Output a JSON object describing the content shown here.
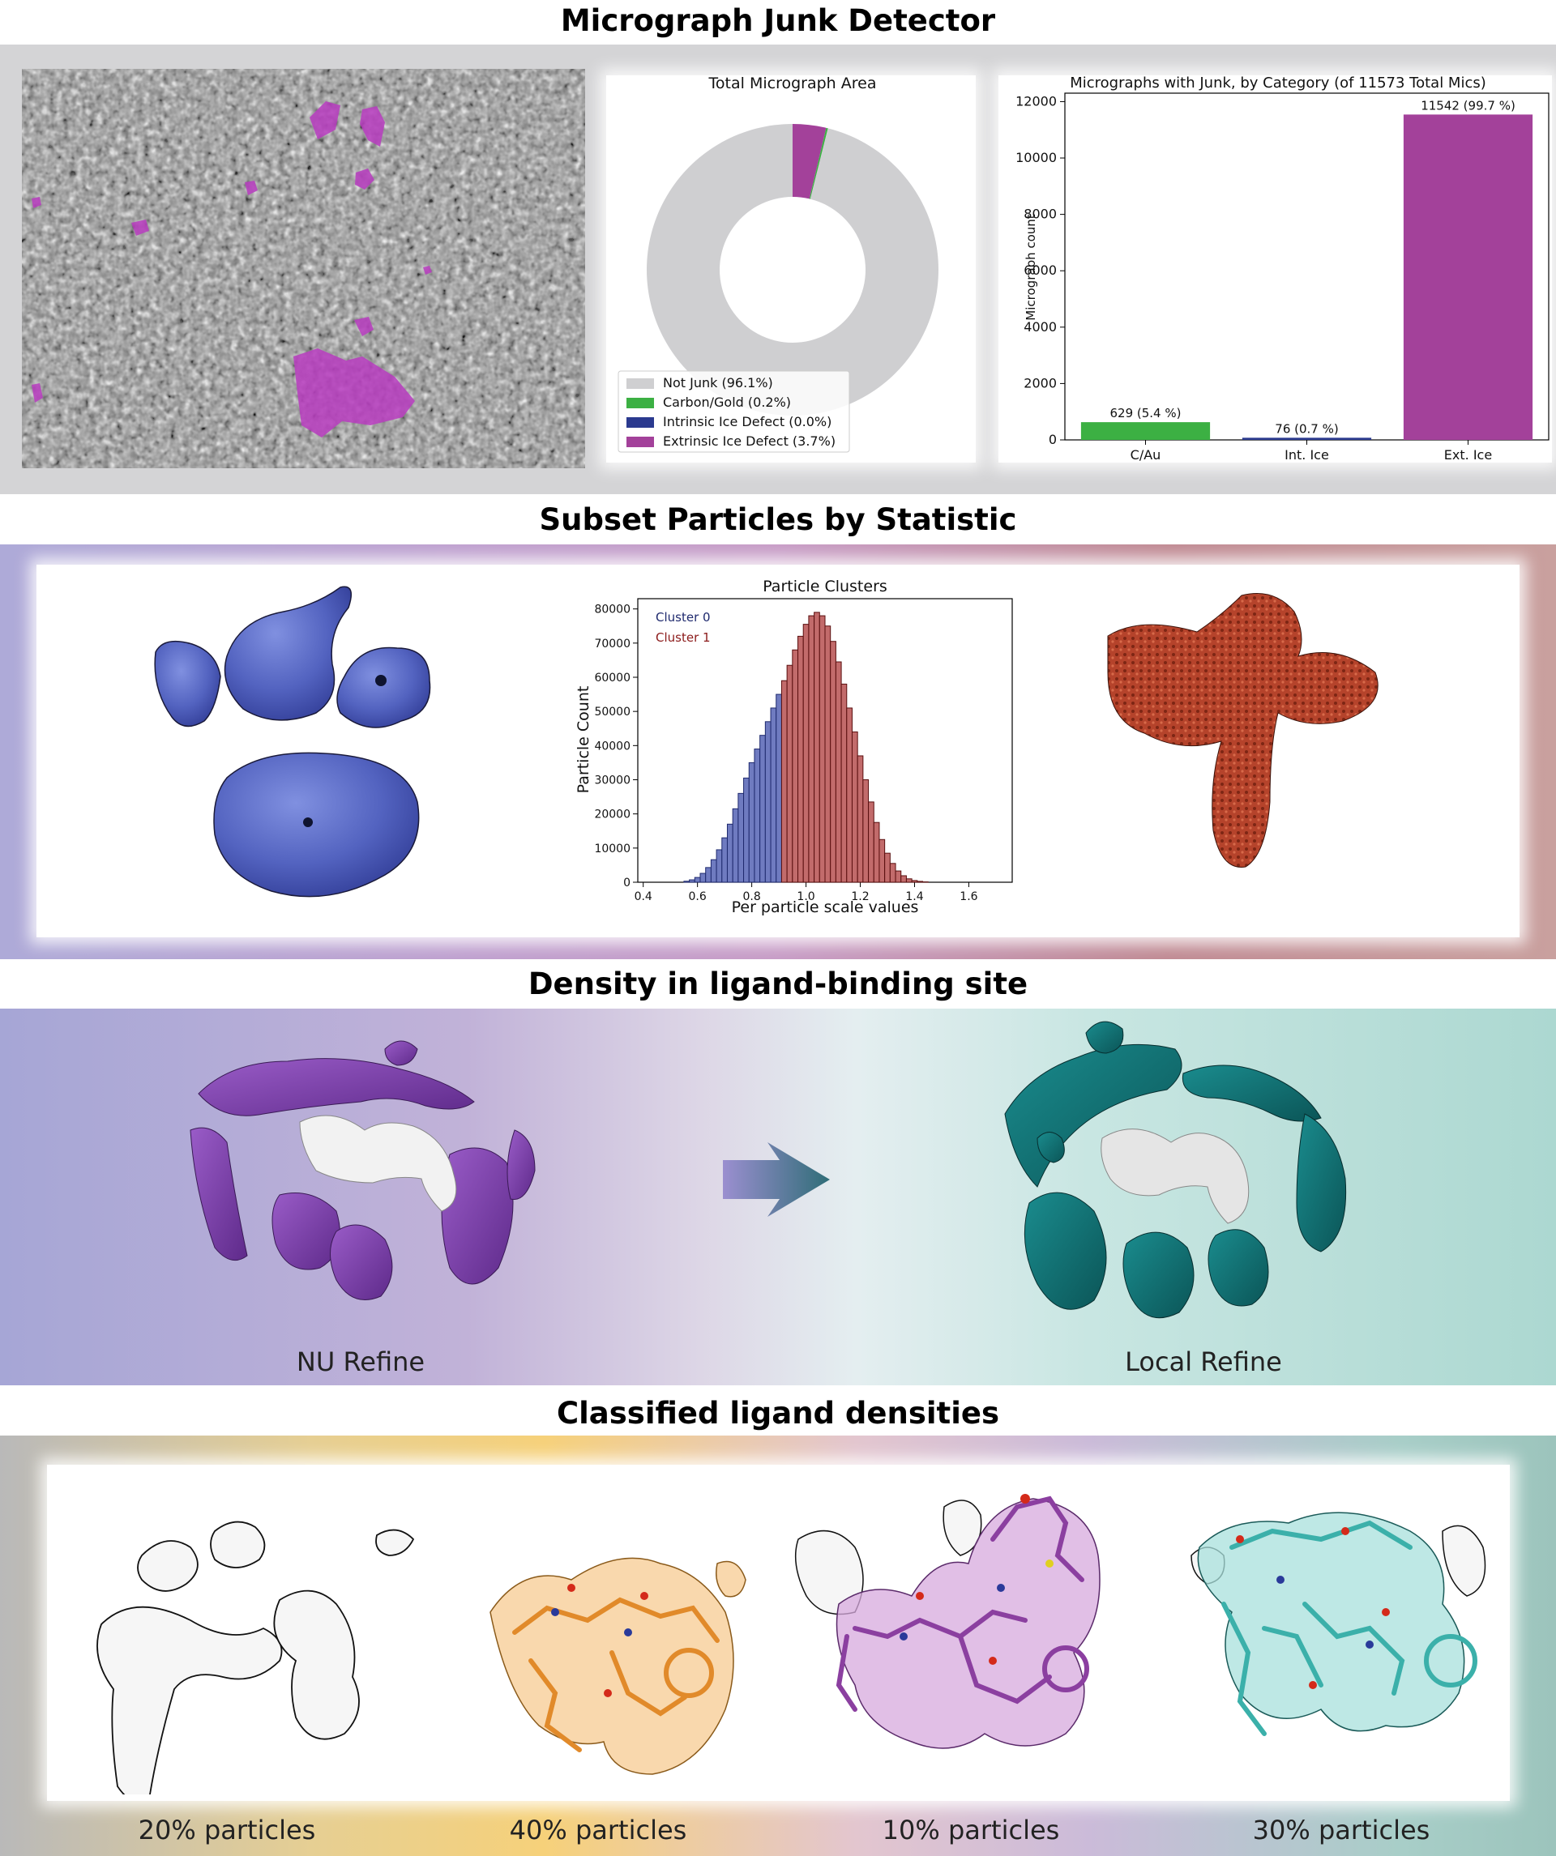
{
  "sections": {
    "junk": {
      "title": "Micrograph Junk Detector"
    },
    "subset": {
      "title": "Subset Particles by Statistic"
    },
    "density": {
      "title": "Density in ligand-binding site",
      "left_label": "NU Refine",
      "right_label": "Local Refine"
    },
    "classified": {
      "title": "Classified ligand densities",
      "labels": [
        "20% particles",
        "40% particles",
        "10% particles",
        "30% particles"
      ]
    }
  },
  "colors": {
    "not_junk": "#cfcfd1",
    "carbon_gold": "#3cb043",
    "intrinsic": "#2b3a8f",
    "extrinsic": "#a3419a",
    "cluster0": "#1f2a6e",
    "cluster1": "#8b1a1a",
    "blue_map": "#5b6cc4",
    "red_map": "#b5432b",
    "purple_map": "#7b3fa6",
    "teal_map": "#12777a"
  },
  "chart_data": [
    {
      "type": "pie",
      "title": "Total Micrograph Area",
      "donut": true,
      "slices": [
        {
          "label": "Not Junk (96.1%)",
          "value": 96.1,
          "color": "#cfcfd1"
        },
        {
          "label": "Carbon/Gold (0.2%)",
          "value": 0.2,
          "color": "#3cb043"
        },
        {
          "label": "Intrinsic Ice Defect (0.0%)",
          "value": 0.0,
          "color": "#2b3a8f"
        },
        {
          "label": "Extrinsic Ice Defect (3.7%)",
          "value": 3.7,
          "color": "#a3419a"
        }
      ],
      "legend": "bottom-left"
    },
    {
      "type": "bar",
      "title": "Micrographs with Junk, by Category (of 11573 Total Mics)",
      "categories": [
        "C/Au",
        "Int. Ice",
        "Ext. Ice"
      ],
      "values": [
        629,
        76,
        11542
      ],
      "data_labels": [
        "629 (5.4 %)",
        "76 (0.7 %)",
        "11542 (99.7 %)"
      ],
      "colors": [
        "#3cb043",
        "#2b3a8f",
        "#a3419a"
      ],
      "ylabel": "Micrograph count",
      "ylim": [
        0,
        12300
      ],
      "yticks": [
        0,
        2000,
        4000,
        6000,
        8000,
        10000,
        12000
      ]
    },
    {
      "type": "bar",
      "title": "Particle Clusters",
      "xlabel": "Per particle scale values",
      "ylabel": "Particle Count",
      "xlim": [
        0.38,
        1.76
      ],
      "ylim": [
        0,
        83000
      ],
      "xticks": [
        0.4,
        0.6,
        0.8,
        1.0,
        1.2,
        1.4,
        1.6
      ],
      "yticks": [
        0,
        10000,
        20000,
        30000,
        40000,
        50000,
        60000,
        70000,
        80000
      ],
      "series": [
        {
          "name": "Cluster 0",
          "x": [
            0.56,
            0.58,
            0.6,
            0.62,
            0.64,
            0.66,
            0.68,
            0.7,
            0.72,
            0.74,
            0.76,
            0.78,
            0.8,
            0.82,
            0.84,
            0.86,
            0.88,
            0.9
          ],
          "values": [
            300,
            700,
            1400,
            2600,
            4300,
            6600,
            9500,
            13000,
            17000,
            21500,
            26000,
            30500,
            35000,
            39000,
            43000,
            47000,
            51000,
            55000
          ]
        },
        {
          "name": "Cluster 1",
          "x": [
            0.92,
            0.94,
            0.96,
            0.98,
            1.0,
            1.02,
            1.04,
            1.06,
            1.08,
            1.1,
            1.12,
            1.14,
            1.16,
            1.18,
            1.2,
            1.22,
            1.24,
            1.26,
            1.28,
            1.3,
            1.32,
            1.34,
            1.36,
            1.38,
            1.4,
            1.42,
            1.44
          ],
          "values": [
            59000,
            63500,
            68000,
            72000,
            75500,
            78000,
            79000,
            78000,
            75000,
            70500,
            64500,
            58000,
            51000,
            44000,
            37000,
            30000,
            23500,
            17500,
            12500,
            8500,
            5500,
            3300,
            1900,
            1000,
            500,
            250,
            100
          ]
        }
      ]
    }
  ]
}
